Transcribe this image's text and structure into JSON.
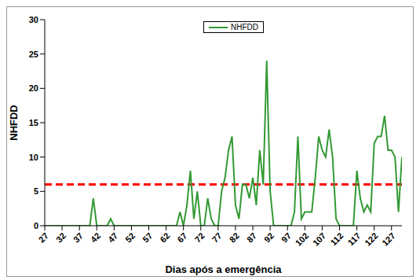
{
  "chart_data": {
    "type": "line",
    "x_label": "Dias após a emergência",
    "y_label": "NHFDD",
    "x": [
      27,
      28,
      29,
      30,
      31,
      32,
      33,
      34,
      35,
      36,
      37,
      38,
      39,
      40,
      41,
      42,
      43,
      44,
      45,
      46,
      47,
      48,
      49,
      50,
      51,
      52,
      53,
      54,
      55,
      56,
      57,
      58,
      59,
      60,
      61,
      62,
      63,
      64,
      65,
      66,
      67,
      68,
      69,
      70,
      71,
      72,
      73,
      74,
      75,
      76,
      77,
      78,
      79,
      80,
      81,
      82,
      83,
      84,
      85,
      86,
      87,
      88,
      89,
      90,
      91,
      92,
      93,
      94,
      95,
      96,
      97,
      98,
      99,
      100,
      101,
      102,
      103,
      104,
      105,
      106,
      107,
      108,
      109,
      110,
      111,
      112,
      113,
      114,
      115,
      116,
      117,
      118,
      119,
      120,
      121,
      122,
      123,
      124,
      125,
      126,
      127,
      128,
      129,
      130
    ],
    "series": [
      {
        "name": "NHFDD",
        "color": "#339933",
        "values": [
          0,
          0,
          0,
          0,
          0,
          0,
          0,
          0,
          0,
          0,
          0,
          0,
          0,
          0,
          4,
          0,
          0,
          0,
          0,
          1,
          0,
          0,
          0,
          0,
          0,
          0,
          0,
          0,
          0,
          0,
          0,
          0,
          0,
          0,
          0,
          0,
          0,
          0,
          0,
          2,
          0,
          3,
          8,
          1,
          5,
          0,
          0,
          4,
          1,
          0,
          0,
          5,
          7,
          11,
          13,
          3,
          1,
          6,
          6,
          4,
          7,
          3,
          11,
          6,
          24,
          5,
          0,
          0,
          0,
          0,
          0,
          0,
          2,
          13,
          1,
          2,
          2,
          2,
          7,
          13,
          11,
          10,
          14,
          10,
          1,
          0,
          0,
          0,
          0,
          0,
          8,
          4,
          2,
          3,
          2,
          12,
          13,
          13,
          16,
          11,
          11,
          10,
          2,
          10
        ]
      }
    ],
    "reference_line": {
      "value": 6,
      "color": "#ff0000",
      "line_style": "dashed"
    },
    "xlim": [
      27,
      130
    ],
    "xticks": [
      27,
      32,
      37,
      42,
      47,
      52,
      57,
      62,
      67,
      72,
      77,
      82,
      87,
      92,
      97,
      102,
      107,
      112,
      117,
      122,
      127
    ],
    "ylim": [
      0,
      30
    ],
    "yticks": [
      0,
      5,
      10,
      15,
      20,
      25,
      30
    ],
    "grid": false,
    "legend": "top"
  }
}
